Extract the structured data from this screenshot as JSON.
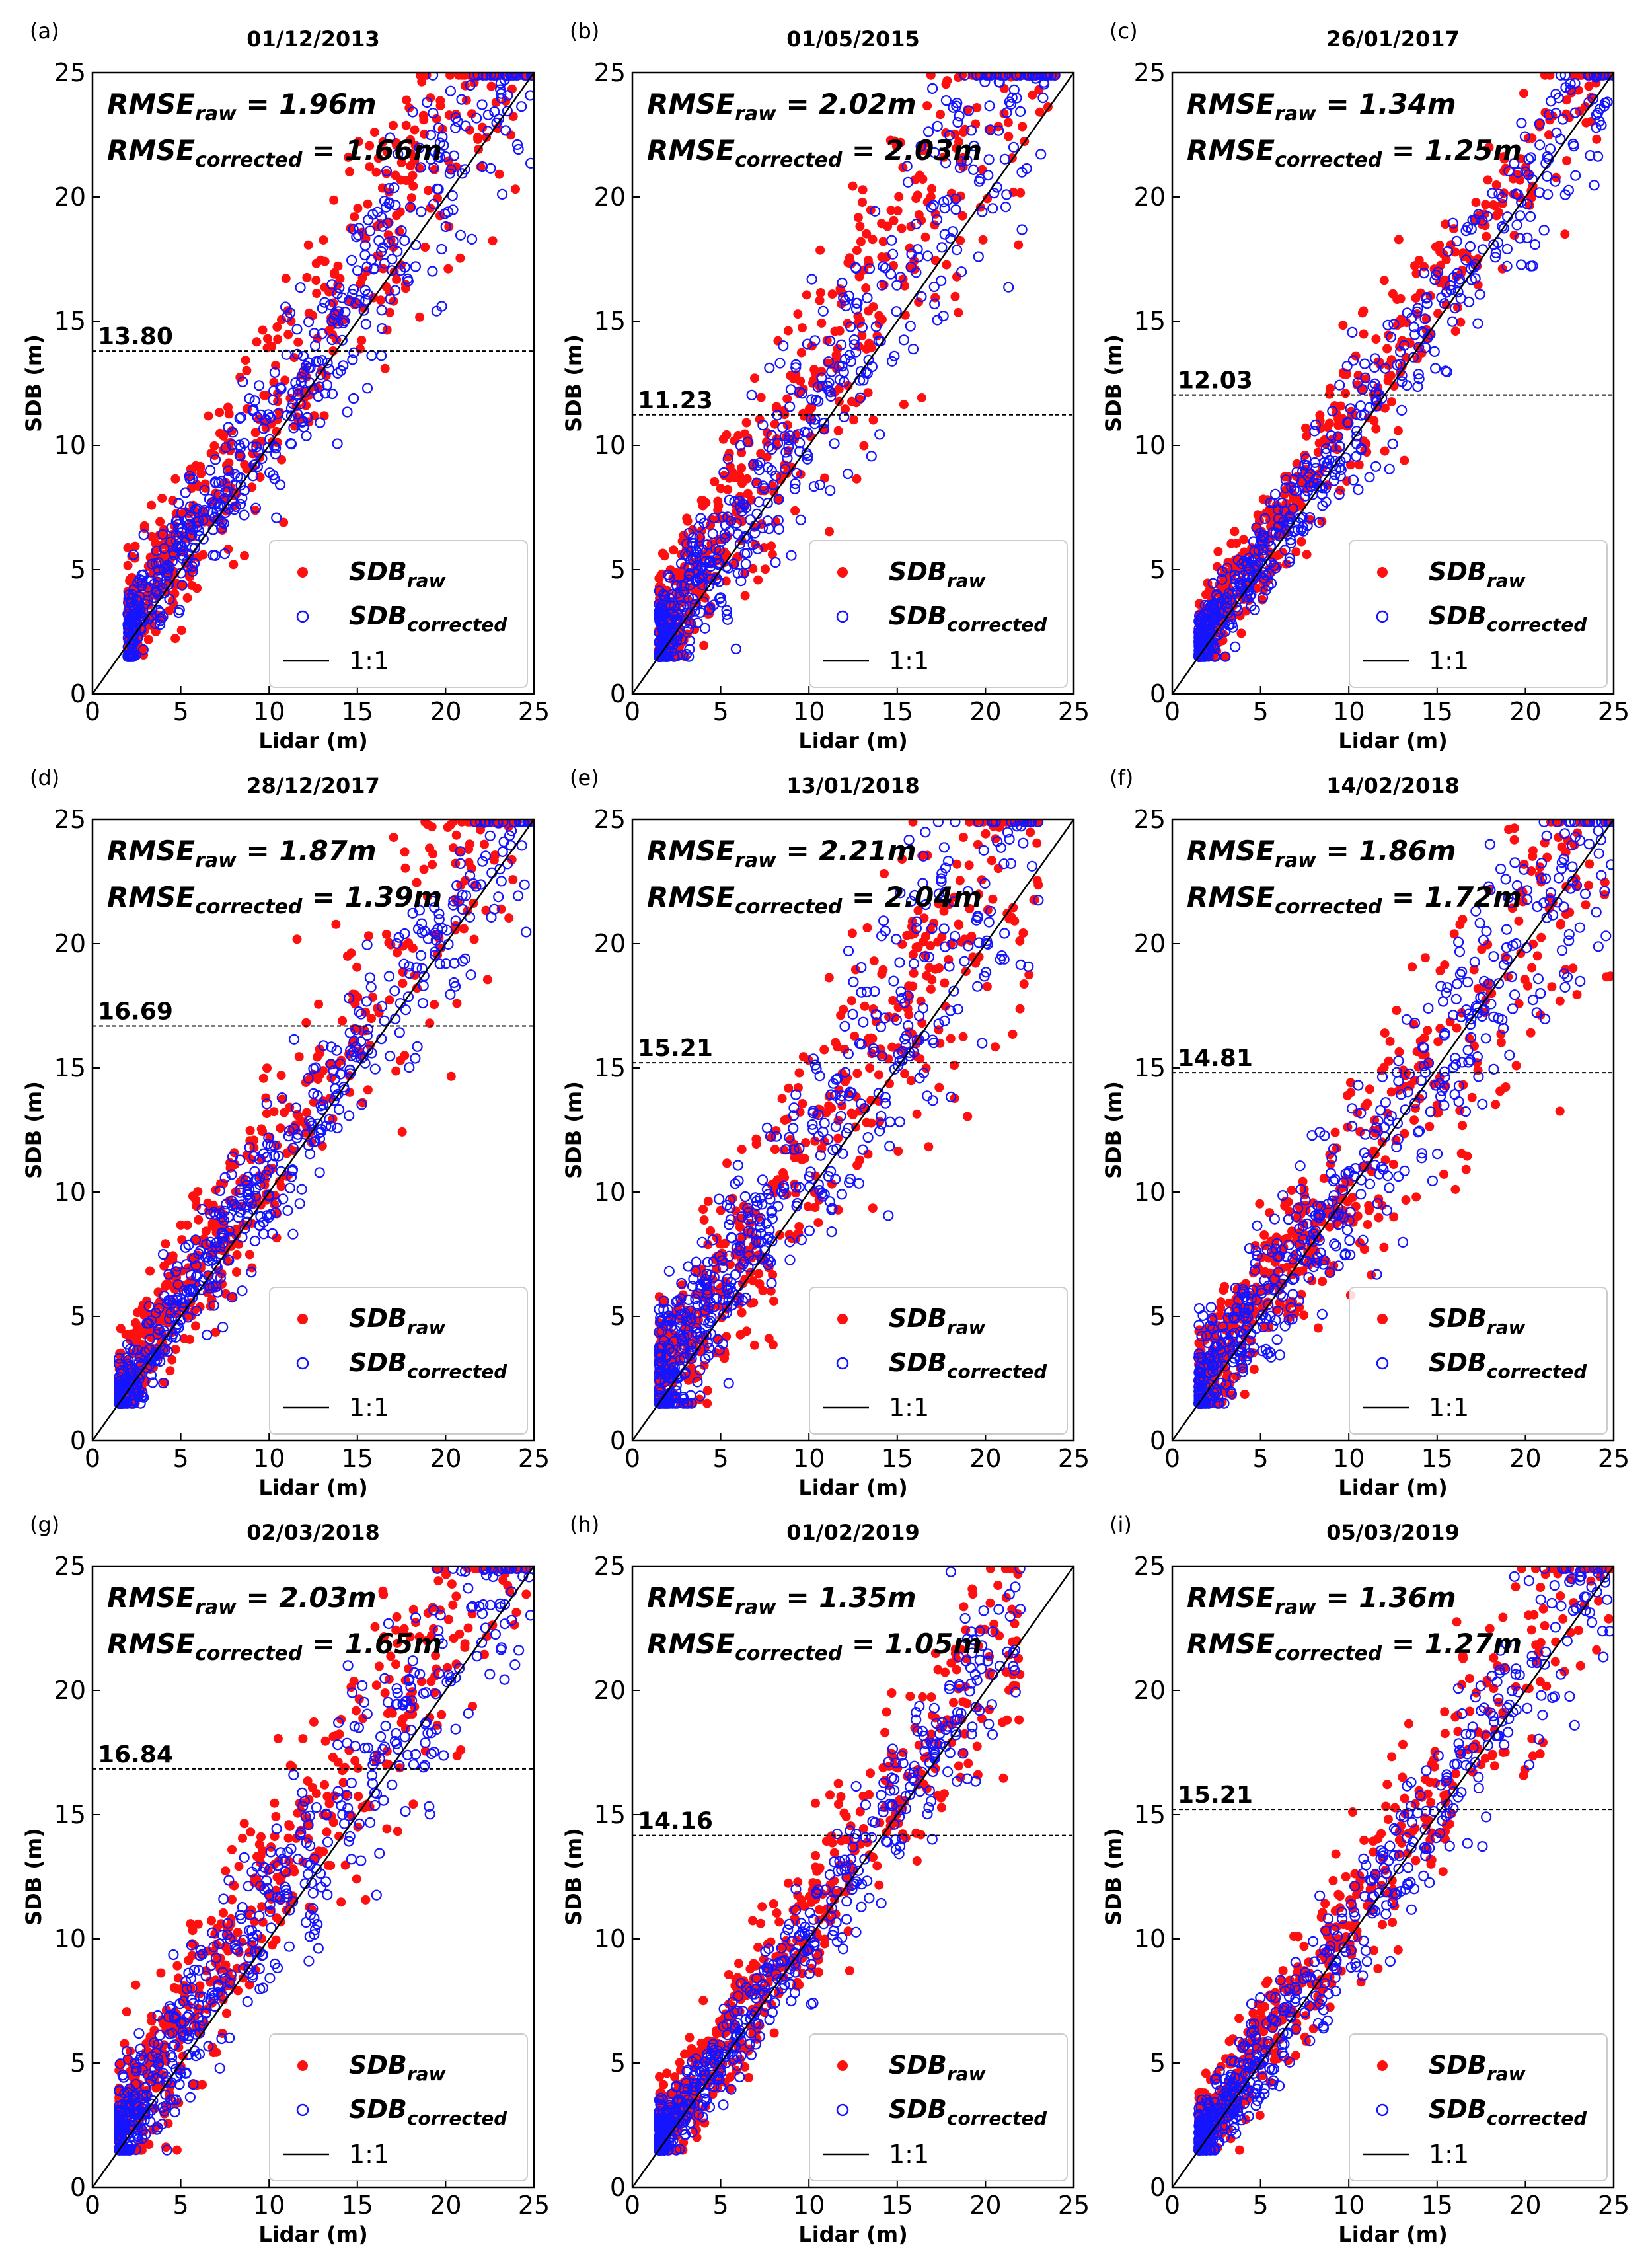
{
  "chart_data": [
    {
      "panel": "(a)",
      "type": "scatter",
      "title": "01/12/2013",
      "xlabel": "Lidar (m)",
      "ylabel": "SDB (m)",
      "xlim": [
        0,
        25
      ],
      "ylim": [
        0,
        25
      ],
      "xticks": [
        "0",
        "5",
        "10",
        "15",
        "20",
        "25"
      ],
      "yticks": [
        "0",
        "5",
        "10",
        "15",
        "20",
        "25"
      ],
      "rmse_raw": "1.96m",
      "rmse_corrected": "1.66m",
      "threshold": 13.8,
      "threshold_label": "13.80",
      "legend_pos": "lower-right",
      "series": [
        {
          "name": "SDB_raw",
          "color": "#ff1010",
          "marker": "filled-circle",
          "cloud": {
            "x_range": [
              2,
              25
            ],
            "slope": 1.12,
            "intercept": 0.4,
            "spread": 1.7,
            "n": 520
          }
        },
        {
          "name": "SDB_corrected",
          "color": "#1414ff",
          "marker": "open-circle",
          "cloud": {
            "x_range": [
              2,
              25
            ],
            "slope": 1.05,
            "intercept": 0.3,
            "spread": 1.3,
            "n": 520
          }
        }
      ]
    },
    {
      "panel": "(b)",
      "type": "scatter",
      "title": "01/05/2015",
      "xlabel": "Lidar (m)",
      "ylabel": "SDB (m)",
      "xlim": [
        0,
        25
      ],
      "ylim": [
        0,
        25
      ],
      "xticks": [
        "0",
        "5",
        "10",
        "15",
        "20",
        "25"
      ],
      "yticks": [
        "0",
        "5",
        "10",
        "15",
        "20",
        "25"
      ],
      "rmse_raw": "2.02m",
      "rmse_corrected": "2.03m",
      "threshold": 11.23,
      "threshold_label": "11.23",
      "legend_pos": "lower-right",
      "series": [
        {
          "name": "SDB_raw",
          "color": "#ff1010",
          "marker": "filled-circle",
          "cloud": {
            "x_range": [
              1.5,
              24
            ],
            "slope": 1.15,
            "intercept": 0.5,
            "spread": 2.0,
            "n": 520
          }
        },
        {
          "name": "SDB_corrected",
          "color": "#1414ff",
          "marker": "open-circle",
          "cloud": {
            "x_range": [
              1.5,
              24
            ],
            "slope": 1.08,
            "intercept": 0.3,
            "spread": 1.8,
            "n": 520
          }
        }
      ]
    },
    {
      "panel": "(c)",
      "type": "scatter",
      "title": "26/01/2017",
      "xlabel": "Lidar (m)",
      "ylabel": "SDB (m)",
      "xlim": [
        0,
        25
      ],
      "ylim": [
        0,
        25
      ],
      "xticks": [
        "0",
        "5",
        "10",
        "15",
        "20",
        "25"
      ],
      "yticks": [
        "0",
        "5",
        "10",
        "15",
        "20",
        "25"
      ],
      "rmse_raw": "1.34m",
      "rmse_corrected": "1.25m",
      "threshold": 12.03,
      "threshold_label": "12.03",
      "legend_pos": "lower-right",
      "series": [
        {
          "name": "SDB_raw",
          "color": "#ff1010",
          "marker": "filled-circle",
          "cloud": {
            "x_range": [
              1.5,
              25
            ],
            "slope": 1.05,
            "intercept": 0.6,
            "spread": 1.2,
            "n": 520
          }
        },
        {
          "name": "SDB_corrected",
          "color": "#1414ff",
          "marker": "open-circle",
          "cloud": {
            "x_range": [
              1.5,
              25
            ],
            "slope": 1.0,
            "intercept": 0.4,
            "spread": 1.0,
            "n": 520
          }
        }
      ]
    },
    {
      "panel": "(d)",
      "type": "scatter",
      "title": "28/12/2017",
      "xlabel": "Lidar (m)",
      "ylabel": "SDB (m)",
      "xlim": [
        0,
        25
      ],
      "ylim": [
        0,
        25
      ],
      "xticks": [
        "0",
        "5",
        "10",
        "15",
        "20",
        "25"
      ],
      "yticks": [
        "0",
        "5",
        "10",
        "15",
        "20",
        "25"
      ],
      "rmse_raw": "1.87m",
      "rmse_corrected": "1.39m",
      "threshold": 16.69,
      "threshold_label": "16.69",
      "legend_pos": "lower-right",
      "series": [
        {
          "name": "SDB_raw",
          "color": "#ff1010",
          "marker": "filled-circle",
          "cloud": {
            "x_range": [
              1.5,
              25
            ],
            "slope": 1.1,
            "intercept": 0.3,
            "spread": 1.6,
            "n": 520
          }
        },
        {
          "name": "SDB_corrected",
          "color": "#1414ff",
          "marker": "open-circle",
          "cloud": {
            "x_range": [
              1.5,
              25
            ],
            "slope": 1.03,
            "intercept": 0.2,
            "spread": 1.2,
            "n": 520
          }
        }
      ]
    },
    {
      "panel": "(e)",
      "type": "scatter",
      "title": "13/01/2018",
      "xlabel": "Lidar (m)",
      "ylabel": "SDB (m)",
      "xlim": [
        0,
        25
      ],
      "ylim": [
        0,
        25
      ],
      "xticks": [
        "0",
        "5",
        "10",
        "15",
        "20",
        "25"
      ],
      "yticks": [
        "0",
        "5",
        "10",
        "15",
        "20",
        "25"
      ],
      "rmse_raw": "2.21m",
      "rmse_corrected": "2.04m",
      "threshold": 15.21,
      "threshold_label": "15.21",
      "legend_pos": "lower-right",
      "series": [
        {
          "name": "SDB_raw",
          "color": "#ff1010",
          "marker": "filled-circle",
          "cloud": {
            "x_range": [
              1.5,
              23
            ],
            "slope": 1.05,
            "intercept": 1.0,
            "spread": 2.0,
            "n": 520
          }
        },
        {
          "name": "SDB_corrected",
          "color": "#1414ff",
          "marker": "open-circle",
          "cloud": {
            "x_range": [
              1.5,
              23
            ],
            "slope": 1.08,
            "intercept": 0.8,
            "spread": 1.9,
            "n": 520
          }
        }
      ]
    },
    {
      "panel": "(f)",
      "type": "scatter",
      "title": "14/02/2018",
      "xlabel": "Lidar (m)",
      "ylabel": "SDB (m)",
      "xlim": [
        0,
        25
      ],
      "ylim": [
        0,
        25
      ],
      "xticks": [
        "0",
        "5",
        "10",
        "15",
        "20",
        "25"
      ],
      "yticks": [
        "0",
        "5",
        "10",
        "15",
        "20",
        "25"
      ],
      "rmse_raw": "1.86m",
      "rmse_corrected": "1.72m",
      "threshold": 14.81,
      "threshold_label": "14.81",
      "legend_pos": "lower-right",
      "series": [
        {
          "name": "SDB_raw",
          "color": "#ff1010",
          "marker": "filled-circle",
          "cloud": {
            "x_range": [
              1.5,
              25
            ],
            "slope": 0.95,
            "intercept": 0.8,
            "spread": 1.7,
            "n": 520
          }
        },
        {
          "name": "SDB_corrected",
          "color": "#1414ff",
          "marker": "open-circle",
          "cloud": {
            "x_range": [
              1.5,
              25
            ],
            "slope": 0.98,
            "intercept": 0.6,
            "spread": 1.6,
            "n": 520
          }
        }
      ]
    },
    {
      "panel": "(g)",
      "type": "scatter",
      "title": "02/03/2018",
      "xlabel": "Lidar (m)",
      "ylabel": "SDB (m)",
      "xlim": [
        0,
        25
      ],
      "ylim": [
        0,
        25
      ],
      "xticks": [
        "0",
        "5",
        "10",
        "15",
        "20",
        "25"
      ],
      "yticks": [
        "0",
        "5",
        "10",
        "15",
        "20",
        "25"
      ],
      "rmse_raw": "2.03m",
      "rmse_corrected": "1.65m",
      "threshold": 16.84,
      "threshold_label": "16.84",
      "legend_pos": "lower-right",
      "series": [
        {
          "name": "SDB_raw",
          "color": "#ff1010",
          "marker": "filled-circle",
          "cloud": {
            "x_range": [
              1.5,
              25
            ],
            "slope": 1.1,
            "intercept": 0.8,
            "spread": 1.8,
            "n": 520
          }
        },
        {
          "name": "SDB_corrected",
          "color": "#1414ff",
          "marker": "open-circle",
          "cloud": {
            "x_range": [
              1.5,
              25
            ],
            "slope": 1.05,
            "intercept": 0.6,
            "spread": 1.5,
            "n": 520
          }
        }
      ]
    },
    {
      "panel": "(h)",
      "type": "scatter",
      "title": "01/02/2019",
      "xlabel": "Lidar (m)",
      "ylabel": "SDB (m)",
      "xlim": [
        0,
        25
      ],
      "ylim": [
        0,
        25
      ],
      "xticks": [
        "0",
        "5",
        "10",
        "15",
        "20",
        "25"
      ],
      "yticks": [
        "0",
        "5",
        "10",
        "15",
        "20",
        "25"
      ],
      "rmse_raw": "1.35m",
      "rmse_corrected": "1.05m",
      "threshold": 14.16,
      "threshold_label": "14.16",
      "legend_pos": "lower-right",
      "series": [
        {
          "name": "SDB_raw",
          "color": "#ff1010",
          "marker": "filled-circle",
          "cloud": {
            "x_range": [
              1.5,
              22
            ],
            "slope": 1.05,
            "intercept": 0.4,
            "spread": 1.3,
            "n": 520
          }
        },
        {
          "name": "SDB_corrected",
          "color": "#1414ff",
          "marker": "open-circle",
          "cloud": {
            "x_range": [
              1.5,
              22
            ],
            "slope": 1.0,
            "intercept": 0.3,
            "spread": 1.0,
            "n": 520
          }
        }
      ]
    },
    {
      "panel": "(i)",
      "type": "scatter",
      "title": "05/03/2019",
      "xlabel": "Lidar (m)",
      "ylabel": "SDB (m)",
      "xlim": [
        0,
        25
      ],
      "ylim": [
        0,
        25
      ],
      "xticks": [
        "0",
        "5",
        "10",
        "15",
        "20",
        "25"
      ],
      "yticks": [
        "0",
        "5",
        "10",
        "15",
        "20",
        "25"
      ],
      "rmse_raw": "1.36m",
      "rmse_corrected": "1.27m",
      "threshold": 15.21,
      "threshold_label": "15.21",
      "legend_pos": "lower-right",
      "series": [
        {
          "name": "SDB_raw",
          "color": "#ff1010",
          "marker": "filled-circle",
          "cloud": {
            "x_range": [
              1.5,
              25
            ],
            "slope": 1.05,
            "intercept": 0.5,
            "spread": 1.3,
            "n": 520
          }
        },
        {
          "name": "SDB_corrected",
          "color": "#1414ff",
          "marker": "open-circle",
          "cloud": {
            "x_range": [
              1.5,
              25
            ],
            "slope": 1.0,
            "intercept": 0.3,
            "spread": 1.1,
            "n": 520
          }
        }
      ]
    }
  ],
  "legend": {
    "raw_label": "SDB",
    "raw_sub": "raw",
    "corrected_label": "SDB",
    "corrected_sub": "corrected",
    "line_label": "1:1"
  },
  "annotation": {
    "rmse_prefix": "RMSE",
    "raw_sub": "raw",
    "corrected_sub": "corrected",
    "equals": " = "
  }
}
